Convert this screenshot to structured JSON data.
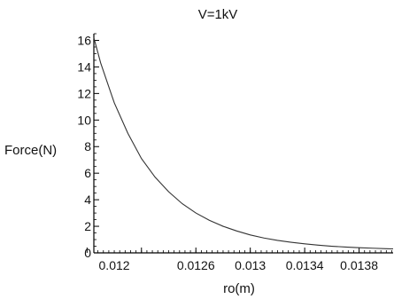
{
  "chart_data": {
    "type": "line",
    "title": "V=1kV",
    "xlabel": "ro(m)",
    "ylabel": "Force(N)",
    "xlim": [
      0.01185,
      0.01405
    ],
    "ylim": [
      0,
      16.5
    ],
    "grid": false,
    "legend": "none",
    "xticks": [
      0.0118,
      0.0122,
      0.0126,
      0.013,
      0.0134,
      0.0138
    ],
    "xtick_labels": [
      "0.012",
      "0.0126",
      "0.013",
      "0.0134",
      "0.0138"
    ],
    "xtick_label_values": [
      0.012,
      0.0126,
      0.013,
      0.0134,
      0.0138
    ],
    "yticks": [
      0,
      2,
      4,
      6,
      8,
      10,
      12,
      14,
      16
    ],
    "ytick_labels": [
      "0",
      "2",
      "4",
      "6",
      "8",
      "10",
      "12",
      "14",
      "16"
    ],
    "series": [
      {
        "x": [
          0.01185,
          0.0119,
          0.012,
          0.0121,
          0.0122,
          0.0123,
          0.0124,
          0.0125,
          0.0126,
          0.0127,
          0.0128,
          0.0129,
          0.013,
          0.0131,
          0.0132,
          0.0133,
          0.0134,
          0.0135,
          0.0136,
          0.0137,
          0.0138,
          0.0139,
          0.014,
          0.01405
        ],
        "y": [
          16.2,
          14.3,
          11.3,
          9.0,
          7.1,
          5.7,
          4.6,
          3.7,
          3.0,
          2.45,
          2.0,
          1.65,
          1.35,
          1.12,
          0.94,
          0.8,
          0.68,
          0.58,
          0.5,
          0.44,
          0.39,
          0.35,
          0.31,
          0.3
        ]
      }
    ],
    "colors": {
      "line": "#333333",
      "axis": "#000000",
      "text": "#111111"
    }
  }
}
